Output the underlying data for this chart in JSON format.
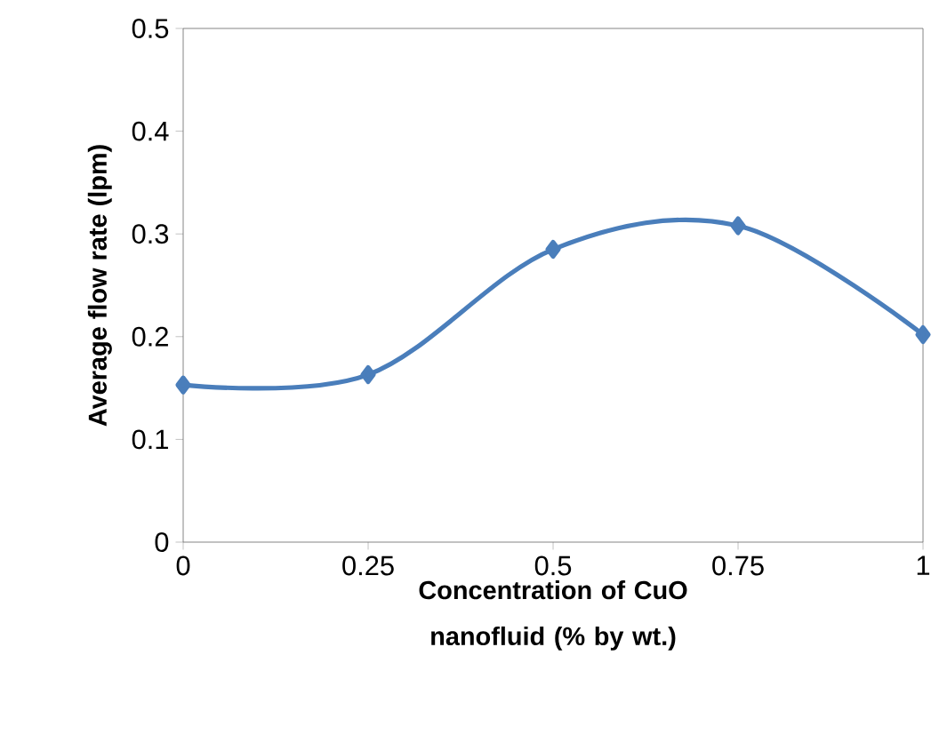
{
  "chart_data": {
    "type": "line",
    "xlabel": "Concentration of CuO nanofluid (% by wt.)",
    "ylabel": "Average flow rate (lpm)",
    "x": [
      0,
      0.25,
      0.5,
      0.75,
      1
    ],
    "series": [
      {
        "color": "#4a7ebb",
        "values": [
          0.153,
          0.163,
          0.285,
          0.308,
          0.202
        ]
      }
    ],
    "xlim": [
      0,
      1
    ],
    "xticks": [
      0,
      0.25,
      0.5,
      0.75,
      1
    ],
    "ylim": [
      0,
      0.5
    ],
    "yticks": [
      0,
      0.1,
      0.2,
      0.3,
      0.4,
      0.5
    ],
    "grid": false,
    "marker": "diamond",
    "line_style": "solid"
  }
}
